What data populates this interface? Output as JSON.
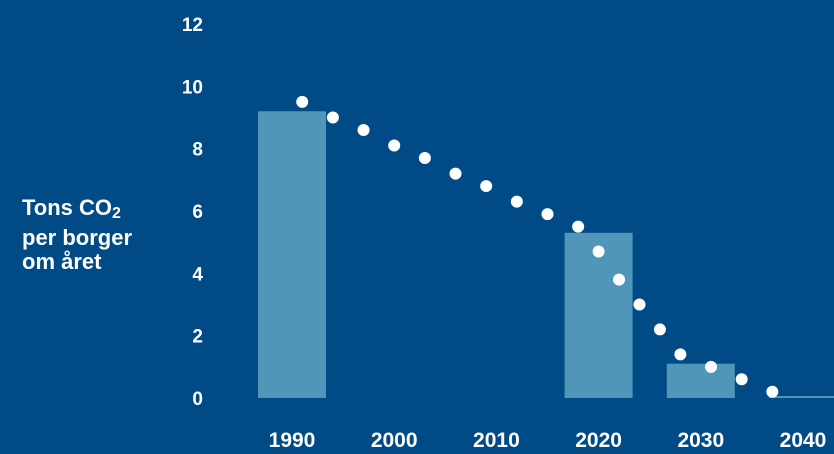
{
  "colors": {
    "background": "#004b86",
    "bar": "#5096b9",
    "dot": "#ffffff",
    "text": "#ffffff"
  },
  "chart_data": {
    "type": "bar",
    "title": "",
    "ylabel": {
      "line1": "Tons CO",
      "line1_sub": "2",
      "line2": "per borger",
      "line3": "om året"
    },
    "xlabel": "",
    "ylim": [
      0,
      12
    ],
    "xlim": [
      1985,
      2045
    ],
    "yticks": [
      "0",
      "2",
      "4",
      "6",
      "8",
      "10",
      "12"
    ],
    "xticks": [
      "1990",
      "2000",
      "2010",
      "2020",
      "2030",
      "2040"
    ],
    "grid": false,
    "legend": "none",
    "bars": [
      {
        "x": 1990,
        "value": 9.2
      },
      {
        "x": 2020,
        "value": 5.3
      },
      {
        "x": 2030,
        "value": 1.1
      },
      {
        "x": 2040,
        "value": 0.05
      }
    ],
    "series": [
      {
        "type": "scatter",
        "points": [
          {
            "x": 1991,
            "y": 9.5
          },
          {
            "x": 1994,
            "y": 9.0
          },
          {
            "x": 1997,
            "y": 8.6
          },
          {
            "x": 2000,
            "y": 8.1
          },
          {
            "x": 2003,
            "y": 7.7
          },
          {
            "x": 2006,
            "y": 7.2
          },
          {
            "x": 2009,
            "y": 6.8
          },
          {
            "x": 2012,
            "y": 6.3
          },
          {
            "x": 2015,
            "y": 5.9
          },
          {
            "x": 2018,
            "y": 5.5
          },
          {
            "x": 2020,
            "y": 4.7
          },
          {
            "x": 2022,
            "y": 3.8
          },
          {
            "x": 2024,
            "y": 3.0
          },
          {
            "x": 2026,
            "y": 2.2
          },
          {
            "x": 2028,
            "y": 1.4
          },
          {
            "x": 2031,
            "y": 1.0
          },
          {
            "x": 2034,
            "y": 0.6
          },
          {
            "x": 2037,
            "y": 0.2
          }
        ]
      }
    ]
  }
}
